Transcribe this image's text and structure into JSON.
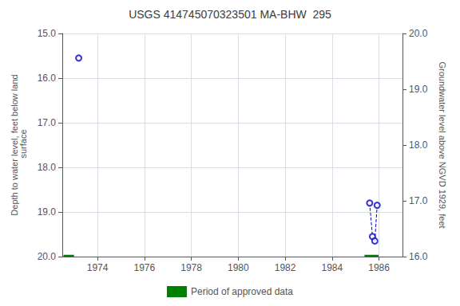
{
  "chart_data": {
    "type": "scatter",
    "title": "USGS 414745070323501 MA-BHW  295",
    "y_label": "Depth to water level, feet below land\n surface",
    "y2_label": "Groundwater level above NGVD 1929, feet",
    "xlim": [
      1972.5,
      1987.0
    ],
    "xticks": [
      1974,
      1976,
      1978,
      1980,
      1982,
      1984,
      1986
    ],
    "ylim": [
      20.0,
      15.0
    ],
    "yticks": [
      {
        "value": 15.0,
        "label": "15.0"
      },
      {
        "value": 16.0,
        "label": "16.0"
      },
      {
        "value": 17.0,
        "label": "17.0"
      },
      {
        "value": 18.0,
        "label": "18.0"
      },
      {
        "value": 19.0,
        "label": "19.0"
      },
      {
        "value": 20.0,
        "label": "20.0"
      }
    ],
    "y2lim": [
      16.0,
      20.0
    ],
    "y2ticks": [
      {
        "value": 16.0,
        "label": "16.0"
      },
      {
        "value": 17.0,
        "label": "17.0"
      },
      {
        "value": 18.0,
        "label": "18.0"
      },
      {
        "value": 19.0,
        "label": "19.0"
      },
      {
        "value": 20.0,
        "label": "20.0"
      }
    ],
    "grid": true,
    "legend": "bottom",
    "series": [
      {
        "type": "line",
        "color": "#0000cc",
        "line_style": "dashed",
        "x": [
          1985.6,
          1985.72,
          1985.82,
          1985.92
        ],
        "values": [
          18.8,
          19.55,
          19.65,
          18.85
        ]
      },
      {
        "type": "scatter",
        "color": "#0000cc",
        "marker": "circle",
        "x": [
          1973.2,
          1985.6,
          1985.72,
          1985.82,
          1985.92
        ],
        "values": [
          15.55,
          18.8,
          19.55,
          19.65,
          18.85
        ]
      },
      {
        "type": "band",
        "name": "Period of approved data",
        "color": "#008000",
        "x": [
          1972.55,
          1985.38
        ],
        "widths": [
          0.45,
          0.6
        ],
        "y": [
          19.96,
          19.96
        ],
        "heights": [
          0.12,
          0.12
        ]
      }
    ]
  }
}
